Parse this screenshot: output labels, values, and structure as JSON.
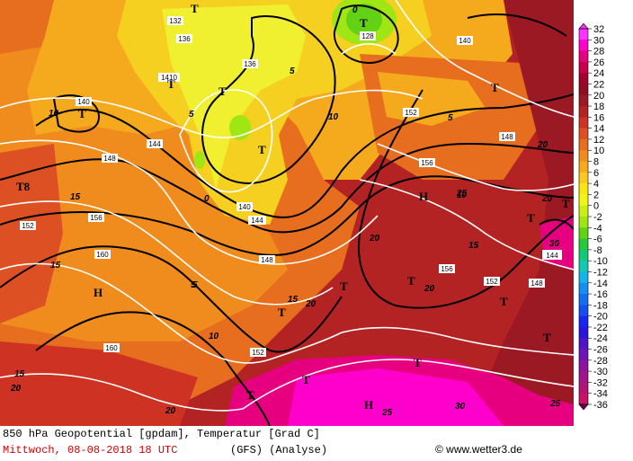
{
  "footer": {
    "line1": "850 hPa Geopotential [gpdam], Temperatur [Grad C]",
    "line2": "Mittwoch, 08-08-2018  18 UTC",
    "model": "(GFS)  (Analyse)",
    "credit": "© www.wetter3.de"
  },
  "legend": {
    "values": [
      "32",
      "30",
      "28",
      "26",
      "24",
      "22",
      "20",
      "18",
      "16",
      "14",
      "12",
      "10",
      "8",
      "6",
      "4",
      "2",
      "0",
      "-2",
      "-4",
      "-6",
      "-8",
      "-10",
      "-12",
      "-14",
      "-16",
      "-18",
      "-20",
      "-22",
      "-24",
      "-26",
      "-28",
      "-30",
      "-32",
      "-34",
      "-36"
    ],
    "colors": [
      "#ff33ff",
      "#ff00cc",
      "#e60080",
      "#c8004b",
      "#a0002d",
      "#8c0f23",
      "#9b1923",
      "#b42323",
      "#cd3223",
      "#dc5023",
      "#e66e1e",
      "#f08c1e",
      "#f5aa1e",
      "#faca1e",
      "#fae614",
      "#f0f514",
      "#c8f014",
      "#a0e614",
      "#64d214",
      "#28c83c",
      "#14c878",
      "#14c8b4",
      "#14b4e6",
      "#1490f0",
      "#146ef0",
      "#1450f0",
      "#1428f0",
      "#2814dc",
      "#5014c8",
      "#6e14b4",
      "#8c14a0",
      "#a0148c",
      "#b41478",
      "#c81464",
      "#6e0050"
    ]
  },
  "map_labels": {
    "geopotential": [
      "132",
      "136",
      "140",
      "144",
      "148",
      "152",
      "156",
      "160",
      "128",
      "140",
      "1410",
      "136",
      "140",
      "144",
      "148",
      "152",
      "156",
      "160",
      "144",
      "148",
      "152",
      "156",
      "152",
      "148"
    ],
    "isotherms": [
      "10",
      "5",
      "0",
      "5",
      "10",
      "15",
      "20",
      "25",
      "30",
      "15",
      "20",
      "10",
      "5",
      "0",
      "5",
      "15",
      "20",
      "25",
      "15",
      "20",
      "10",
      "15",
      "20",
      "25",
      "20",
      "30",
      "20",
      "5"
    ],
    "pressure_marks": [
      "T",
      "T",
      "T",
      "T",
      "T",
      "T",
      "H",
      "H",
      "T",
      "T",
      "T",
      "T",
      "T",
      "H",
      "T",
      "T",
      "T",
      "T",
      "T8",
      "T",
      "T"
    ]
  }
}
